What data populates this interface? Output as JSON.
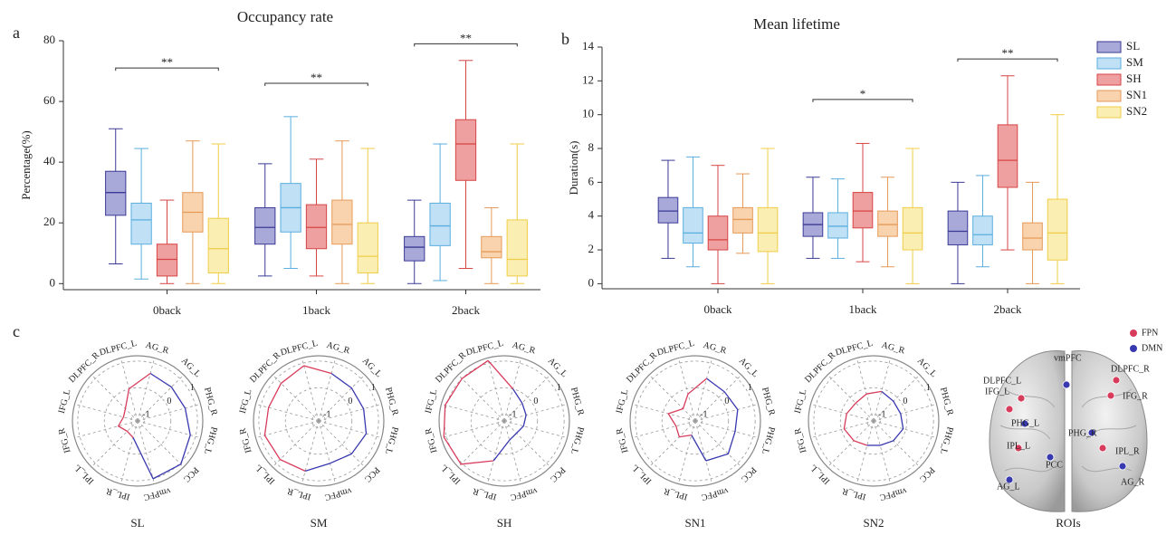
{
  "panel_labels": [
    "a",
    "b",
    "c"
  ],
  "chart_data": [
    {
      "type": "box",
      "title": "Occupancy rate",
      "y_label": "Percentage(%)",
      "categories": [
        "0back",
        "1back",
        "2back"
      ],
      "ylim": [
        -2,
        80
      ],
      "yticks": [
        0,
        20,
        40,
        60,
        80
      ],
      "series": [
        {
          "color": "#3a3a96",
          "fill": "#a9a9d9",
          "values": [
            {
              "min": 6.5,
              "q1": 22.5,
              "median": 30,
              "q3": 37,
              "max": 51
            },
            {
              "min": 2.5,
              "q1": 13,
              "median": 18.5,
              "q3": 25,
              "max": 39.5
            },
            {
              "min": 0,
              "q1": 7.5,
              "median": 12,
              "q3": 15.5,
              "max": 27.5
            }
          ]
        },
        {
          "color": "#5aaedf",
          "fill": "#c0e1f5",
          "values": [
            {
              "min": 1.5,
              "q1": 13,
              "median": 21,
              "q3": 26.5,
              "max": 44.5
            },
            {
              "min": 5,
              "q1": 17,
              "median": 25,
              "q3": 33,
              "max": 55
            },
            {
              "min": 1,
              "q1": 12.5,
              "median": 19,
              "q3": 26.5,
              "max": 46
            }
          ]
        },
        {
          "color": "#d64545",
          "fill": "#ee9f9f",
          "values": [
            {
              "min": 0,
              "q1": 2.5,
              "median": 8,
              "q3": 13,
              "max": 27.5
            },
            {
              "min": 2.5,
              "q1": 11.5,
              "median": 18.5,
              "q3": 26,
              "max": 41
            },
            {
              "min": 5,
              "q1": 34,
              "median": 46,
              "q3": 54,
              "max": 73.5
            }
          ]
        },
        {
          "color": "#e69a58",
          "fill": "#f8d3ae",
          "values": [
            {
              "min": 0,
              "q1": 17,
              "median": 23.5,
              "q3": 30,
              "max": 47
            },
            {
              "min": 0,
              "q1": 13,
              "median": 19.5,
              "q3": 27.5,
              "max": 47
            },
            {
              "min": 0,
              "q1": 8.5,
              "median": 10.5,
              "q3": 15.5,
              "max": 25
            }
          ]
        },
        {
          "color": "#efcd47",
          "fill": "#faeeb3",
          "values": [
            {
              "min": 0,
              "q1": 3.5,
              "median": 11.5,
              "q3": 21.5,
              "max": 46
            },
            {
              "min": 0,
              "q1": 3.5,
              "median": 9,
              "q3": 20,
              "max": 44.5
            },
            {
              "min": 0,
              "q1": 2.5,
              "median": 8,
              "q3": 21,
              "max": 46
            }
          ]
        }
      ],
      "annotations": [
        {
          "text": "**",
          "category": "0back",
          "y": 71
        },
        {
          "text": "**",
          "category": "1back",
          "y": 66
        },
        {
          "text": "**",
          "category": "2back",
          "y": 79
        }
      ]
    },
    {
      "type": "box",
      "title": "Mean lifetime",
      "y_label": "Duration(s)",
      "categories": [
        "0back",
        "1back",
        "2back"
      ],
      "ylim": [
        -0.3,
        14
      ],
      "yticks": [
        0,
        2,
        4,
        6,
        8,
        10,
        12,
        14
      ],
      "legend": "outside right",
      "series": [
        {
          "name": "SL",
          "color": "#3a3a96",
          "fill": "#a9a9d9",
          "values": [
            {
              "min": 1.5,
              "q1": 3.6,
              "median": 4.3,
              "q3": 5.1,
              "max": 7.3
            },
            {
              "min": 1.5,
              "q1": 2.8,
              "median": 3.5,
              "q3": 4.2,
              "max": 6.3
            },
            {
              "min": 0,
              "q1": 2.3,
              "median": 3.1,
              "q3": 4.3,
              "max": 6
            }
          ]
        },
        {
          "name": "SM",
          "color": "#5aaedf",
          "fill": "#c0e1f5",
          "values": [
            {
              "min": 1,
              "q1": 2.4,
              "median": 3,
              "q3": 4.5,
              "max": 7.5
            },
            {
              "min": 1.5,
              "q1": 2.7,
              "median": 3.4,
              "q3": 4.2,
              "max": 6.2
            },
            {
              "min": 1,
              "q1": 2.3,
              "median": 2.9,
              "q3": 4,
              "max": 6.4
            }
          ]
        },
        {
          "name": "SH",
          "color": "#d64545",
          "fill": "#ee9f9f",
          "values": [
            {
              "min": 0,
              "q1": 2,
              "median": 2.6,
              "q3": 4,
              "max": 7
            },
            {
              "min": 1.3,
              "q1": 3.3,
              "median": 4.3,
              "q3": 5.4,
              "max": 8.3
            },
            {
              "min": 2,
              "q1": 5.7,
              "median": 7.3,
              "q3": 9.4,
              "max": 12.3
            }
          ]
        },
        {
          "name": "SN1",
          "color": "#e69a58",
          "fill": "#f8d3ae",
          "values": [
            {
              "min": 1.8,
              "q1": 3,
              "median": 3.8,
              "q3": 4.5,
              "max": 6.5
            },
            {
              "min": 1,
              "q1": 2.8,
              "median": 3.5,
              "q3": 4.3,
              "max": 6.3
            },
            {
              "min": 0,
              "q1": 2,
              "median": 2.7,
              "q3": 3.6,
              "max": 6
            }
          ]
        },
        {
          "name": "SN2",
          "color": "#efcd47",
          "fill": "#faeeb3",
          "values": [
            {
              "min": 0,
              "q1": 1.9,
              "median": 3,
              "q3": 4.5,
              "max": 8
            },
            {
              "min": 0,
              "q1": 2,
              "median": 3,
              "q3": 4.5,
              "max": 8
            },
            {
              "min": 0,
              "q1": 1.4,
              "median": 3,
              "q3": 5,
              "max": 10
            }
          ]
        }
      ],
      "annotations": [
        {
          "text": "*",
          "category": "1back",
          "y": 10.9
        },
        {
          "text": "**",
          "category": "2back",
          "y": 13.3
        }
      ]
    },
    {
      "type": "radar",
      "title": "SL",
      "axes": [
        "AG_R",
        "AG_L",
        "PHG_R",
        "PHG_L",
        "PCC",
        "vmPFC",
        "IPL_R",
        "IPL_L",
        "IFG_R",
        "IFG_L",
        "DLPFC_R",
        "DLPFC_L"
      ],
      "rlim": [
        -1.25,
        1.2
      ],
      "rticks": [
        -1,
        0,
        1
      ],
      "series": [
        {
          "color": "#3838b0",
          "values": [
            0.6,
            0.55,
            0.6,
            0.8,
            1.05,
            1.0,
            null,
            null,
            null,
            null,
            null,
            null
          ]
        },
        {
          "color": "#d83c5c",
          "values": [
            null,
            null,
            null,
            null,
            null,
            null,
            -0.6,
            -0.7,
            -0.5,
            -0.7,
            -0.6,
            0.0
          ]
        }
      ]
    },
    {
      "type": "radar",
      "title": "SM",
      "axes": [
        "AG_R",
        "AG_L",
        "PHG_R",
        "PHG_L",
        "PCC",
        "vmPFC",
        "IPL_R",
        "IPL_L",
        "IFG_R",
        "IFG_L",
        "DLPFC_R",
        "DLPFC_L"
      ],
      "rlim": [
        -1.25,
        1.2
      ],
      "rticks": [
        -1,
        0,
        1
      ],
      "series": [
        {
          "color": "#3838b0",
          "values": [
            0.6,
            0.5,
            0.5,
            0.6,
            0.5,
            0.4,
            null,
            null,
            null,
            null,
            null,
            null
          ]
        },
        {
          "color": "#d83c5c",
          "values": [
            null,
            null,
            null,
            null,
            null,
            null,
            0.7,
            0.8,
            0.85,
            0.7,
            0.75,
            0.9
          ]
        }
      ]
    },
    {
      "type": "radar",
      "title": "SH",
      "axes": [
        "AG_R",
        "AG_L",
        "PHG_R",
        "PHG_L",
        "PCC",
        "vmPFC",
        "IPL_R",
        "IPL_L",
        "IFG_R",
        "IFG_L",
        "DLPFC_R",
        "DLPFC_L"
      ],
      "rlim": [
        -1.25,
        1.2
      ],
      "rticks": [
        -1,
        0,
        1
      ],
      "series": [
        {
          "color": "#3838b0",
          "values": [
            0.0,
            -0.3,
            -0.4,
            -0.5,
            -0.6,
            -0.5,
            null,
            null,
            null,
            null,
            null,
            null
          ]
        },
        {
          "color": "#d83c5c",
          "values": [
            null,
            null,
            null,
            null,
            null,
            null,
            0.3,
            1.05,
            1.1,
            1.05,
            1.0,
            1.1
          ]
        }
      ]
    },
    {
      "type": "radar",
      "title": "SN1",
      "axes": [
        "AG_R",
        "AG_L",
        "PHG_R",
        "PHG_L",
        "PCC",
        "vmPFC",
        "IPL_R",
        "IPL_L",
        "IFG_R",
        "IFG_L",
        "DLPFC_R",
        "DLPFC_L"
      ],
      "rlim": [
        -1.25,
        1.2
      ],
      "rticks": [
        -1,
        0,
        1
      ],
      "series": [
        {
          "color": "#3838b0",
          "values": [
            0.4,
            0.3,
            0.4,
            0.3,
            0.5,
            0.3,
            null,
            null,
            null,
            null,
            null,
            null
          ]
        },
        {
          "color": "#d83c5c",
          "values": [
            null,
            null,
            null,
            null,
            null,
            null,
            -0.7,
            -0.4,
            -0.5,
            -0.2,
            -0.6,
            -0.2
          ]
        }
      ]
    },
    {
      "type": "radar",
      "title": "SN2",
      "axes": [
        "AG_R",
        "AG_L",
        "PHG_R",
        "PHG_L",
        "PCC",
        "vmPFC",
        "IPL_R",
        "IPL_L",
        "IFG_R",
        "IFG_L",
        "DLPFC_R",
        "DLPFC_L"
      ],
      "rlim": [
        -1.25,
        1.2
      ],
      "rticks": [
        -1,
        0,
        1
      ],
      "series": [
        {
          "color": "#3838b0",
          "values": [
            -0.1,
            -0.2,
            -0.2,
            -0.1,
            -0.2,
            -0.3,
            null,
            null,
            null,
            null,
            null,
            null
          ]
        },
        {
          "color": "#d83c5c",
          "values": [
            null,
            null,
            null,
            null,
            null,
            null,
            -0.3,
            -0.2,
            -0.1,
            -0.2,
            -0.3,
            -0.2
          ]
        }
      ]
    }
  ],
  "rois": {
    "title": "ROIs",
    "legend": [
      {
        "name": "FPN",
        "color": "#d83c5c"
      },
      {
        "name": "DMN",
        "color": "#3838b0"
      }
    ],
    "regions": [
      {
        "label": "vmPFC",
        "network": "DMN"
      },
      {
        "label": "DLPFC_L",
        "network": "FPN"
      },
      {
        "label": "DLPFC_R",
        "network": "FPN"
      },
      {
        "label": "IFG_L",
        "network": "FPN"
      },
      {
        "label": "IFG_R",
        "network": "FPN"
      },
      {
        "label": "PHG_L",
        "network": "DMN"
      },
      {
        "label": "PHG_R",
        "network": "DMN"
      },
      {
        "label": "IPL_L",
        "network": "FPN"
      },
      {
        "label": "IPL_R",
        "network": "FPN"
      },
      {
        "label": "PCC",
        "network": "DMN"
      },
      {
        "label": "AG_L",
        "network": "DMN"
      },
      {
        "label": "AG_R",
        "network": "DMN"
      }
    ]
  }
}
